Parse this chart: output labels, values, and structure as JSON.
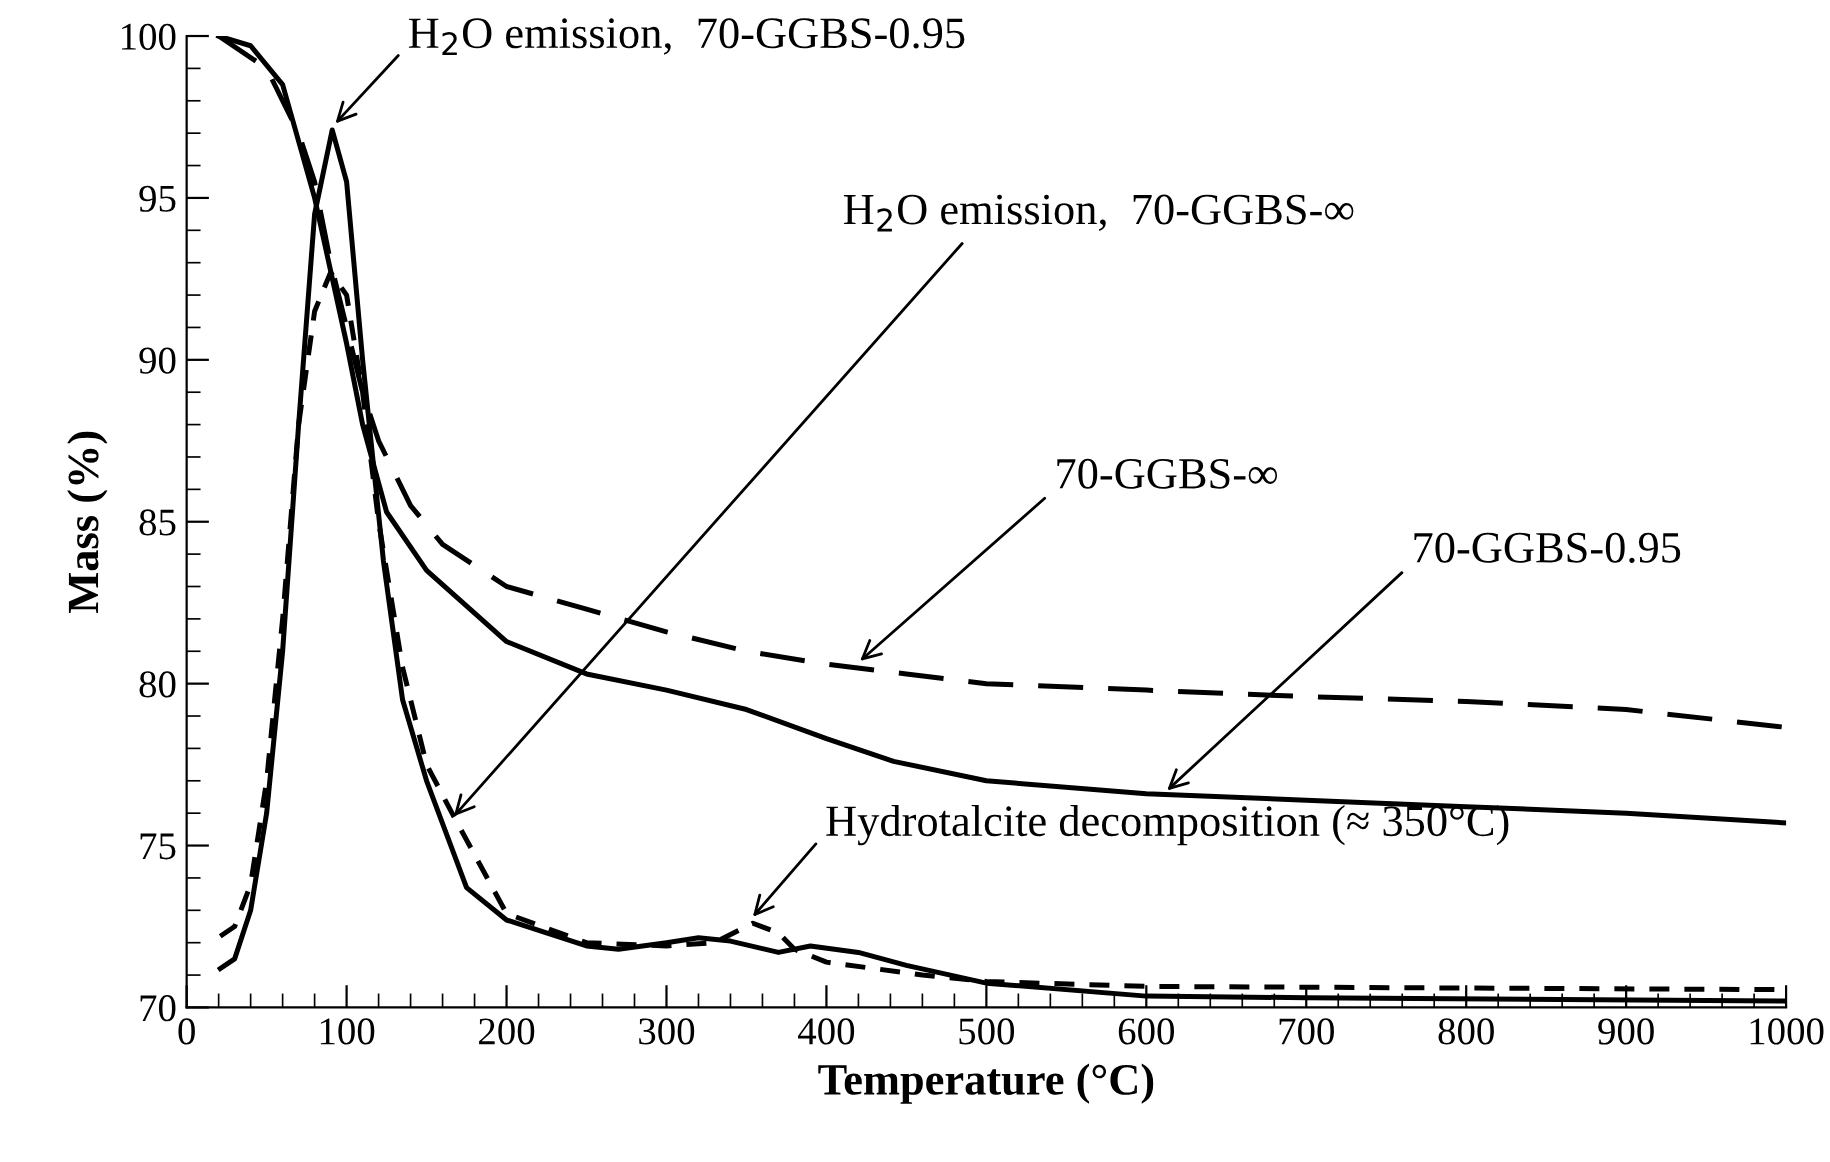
{
  "chart_data": {
    "type": "line",
    "xlabel": "Temperature (°C)",
    "ylabel": "Mass (%)",
    "xlim": [
      0,
      1000
    ],
    "ylim": [
      70,
      100
    ],
    "xticks": [
      0,
      100,
      200,
      300,
      400,
      500,
      600,
      700,
      800,
      900,
      1000
    ],
    "yticks": [
      70,
      75,
      80,
      85,
      90,
      95,
      100
    ],
    "grid": false,
    "marker": "none",
    "series": [
      {
        "color": "#000000",
        "line_style": "solid",
        "x": [
          20,
          40,
          60,
          80,
          100,
          110,
          125,
          150,
          200,
          250,
          300,
          350,
          400,
          442,
          500,
          600,
          700,
          800,
          900,
          1000
        ],
        "values": [
          100,
          99.7,
          98.5,
          95,
          90.5,
          88,
          85.3,
          83.5,
          81.3,
          80.3,
          79.8,
          79.2,
          78.3,
          77.6,
          77.0,
          76.6,
          76.4,
          76.2,
          76.0,
          75.7
        ]
      },
      {
        "color": "#000000",
        "line_style": "dashed",
        "x": [
          20,
          50,
          70,
          80,
          90,
          100,
          110,
          120,
          140,
          160,
          200,
          250,
          300,
          350,
          400,
          450,
          500,
          600,
          700,
          800,
          900,
          1000
        ],
        "values": [
          100,
          99,
          97,
          95.5,
          93,
          91,
          89,
          87.5,
          85.5,
          84.3,
          83.0,
          82.3,
          81.6,
          81.0,
          80.6,
          80.3,
          80.0,
          79.8,
          79.6,
          79.45,
          79.2,
          78.65
        ]
      },
      {
        "color": "#000000",
        "line_style": "solid",
        "x": [
          21,
          30,
          40,
          50,
          60,
          70,
          80,
          91,
          100,
          110,
          123,
          135,
          150,
          175,
          200,
          250,
          270,
          300,
          320,
          340,
          370,
          390,
          420,
          450,
          500,
          600,
          700,
          1000
        ],
        "values": [
          71.2,
          71.5,
          73,
          76,
          81,
          88,
          94.5,
          97.1,
          95.5,
          90,
          83.8,
          79.5,
          77,
          73.7,
          72.7,
          71.9,
          71.8,
          72.0,
          72.15,
          72.05,
          71.7,
          71.9,
          71.7,
          71.3,
          70.75,
          70.35,
          70.3,
          70.2
        ]
      },
      {
        "color": "#000000",
        "line_style": "dotted",
        "x": [
          21,
          30,
          40,
          50,
          60,
          70,
          80,
          90,
          100,
          110,
          120,
          135,
          150,
          167,
          200,
          250,
          300,
          330,
          354,
          370,
          380,
          400,
          430,
          460,
          500,
          600,
          1000
        ],
        "values": [
          72.2,
          72.5,
          73.8,
          77,
          82,
          88,
          91.5,
          92.7,
          92,
          89,
          85,
          80.5,
          77.5,
          75.9,
          72.9,
          72.0,
          71.9,
          72.0,
          72.6,
          72.3,
          71.8,
          71.4,
          71.2,
          71.0,
          70.8,
          70.65,
          70.55
        ]
      }
    ],
    "annotations": [
      {
        "text": "H$_{2}$O emission,  70-GGBS-0.95",
        "x": 93,
        "y": 97.3
      },
      {
        "text": "H$_{2}$O emission,  70-GGBS-∞",
        "x": 167,
        "y": 75.9
      },
      {
        "text": "70-GGBS-∞",
        "x": 421,
        "y": 80.7
      },
      {
        "text": "70-GGBS-0.95",
        "x": 613,
        "y": 76.7
      },
      {
        "text": "Hydrotalcite decomposition (≈ 350°C)",
        "x": 354,
        "y": 72.8
      }
    ]
  }
}
